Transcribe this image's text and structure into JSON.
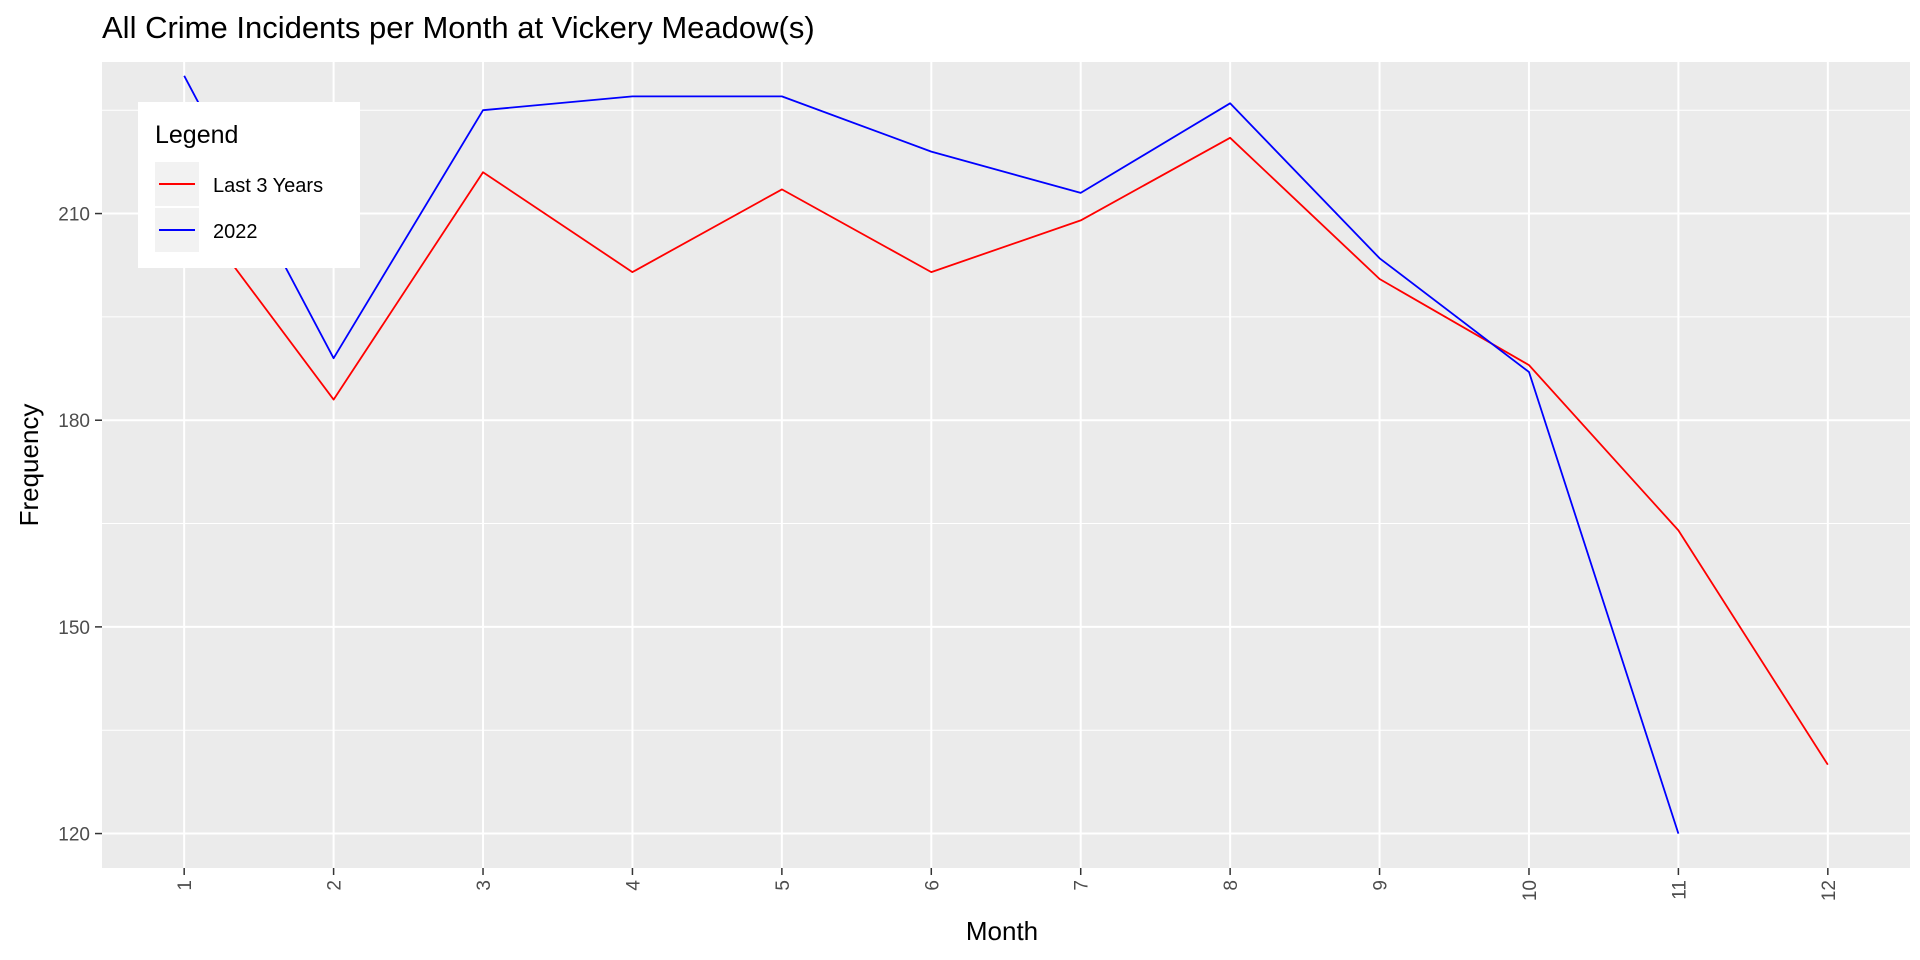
{
  "chart_data": {
    "type": "line",
    "title": "All Crime Incidents per Month at Vickery Meadow(s)",
    "xlabel": "Month",
    "ylabel": "Frequency",
    "x": [
      1,
      2,
      3,
      4,
      5,
      6,
      7,
      8,
      9,
      10,
      11,
      12
    ],
    "xlim": [
      0.45,
      12.55
    ],
    "ylim": [
      115,
      232
    ],
    "y_ticks": [
      120,
      150,
      180,
      210
    ],
    "grid": true,
    "legend_position": "top-left",
    "legend_title": "Legend",
    "series": [
      {
        "name": "Last 3 Years",
        "color": "#ff0000",
        "values": [
          212,
          183,
          216,
          201.5,
          213.5,
          201.5,
          209,
          221,
          200.5,
          188,
          164,
          130
        ]
      },
      {
        "name": "2022",
        "color": "#0000ff",
        "values": [
          230,
          189,
          225,
          227,
          227,
          219,
          213,
          226,
          203.5,
          187,
          120,
          null
        ]
      }
    ]
  }
}
